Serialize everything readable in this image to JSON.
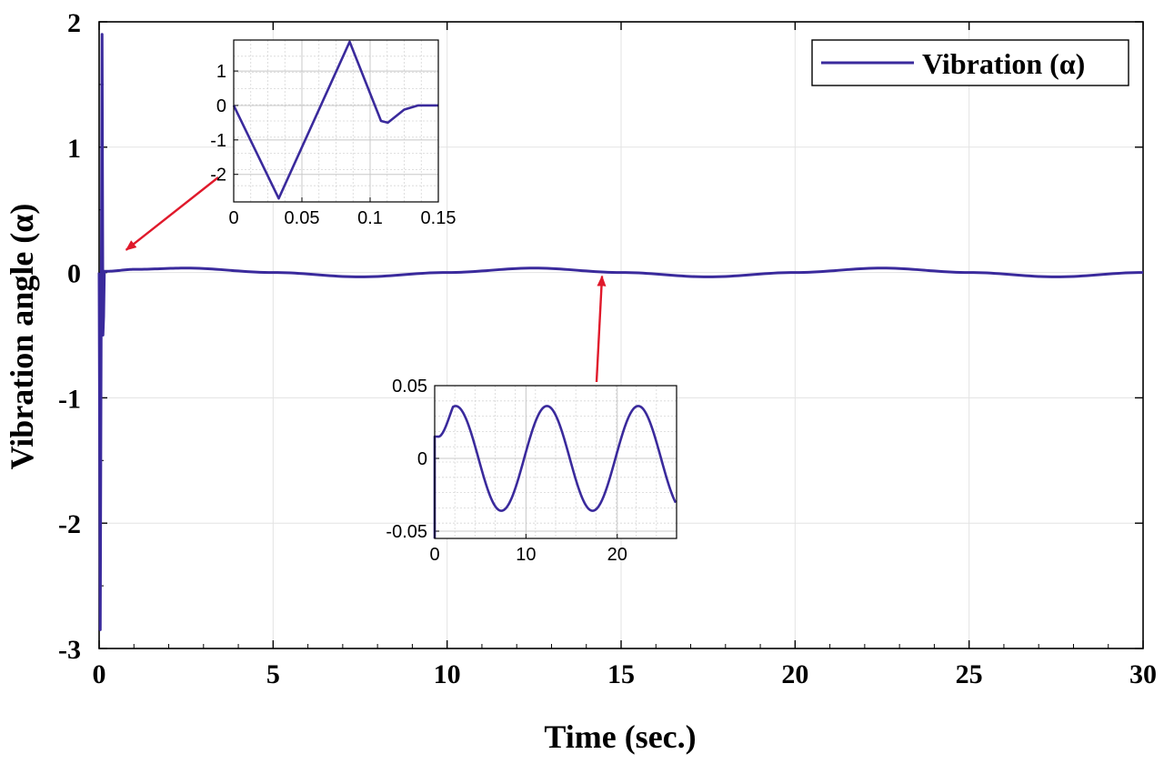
{
  "chart_data": {
    "type": "line",
    "xlabel": "Time (sec.)",
    "ylabel": "Vibration angle (α)",
    "xlim": [
      0,
      30
    ],
    "ylim": [
      -3,
      2
    ],
    "xticks": [
      0,
      5,
      10,
      15,
      20,
      25,
      30
    ],
    "yticks": [
      -3,
      -2,
      -1,
      0,
      1,
      2
    ],
    "grid": true,
    "legend": {
      "position": "top-right",
      "entries": [
        "Vibration (α)"
      ]
    },
    "series": [
      {
        "name": "Vibration (α)",
        "color": "#3a2a9c",
        "x": [
          0,
          0.033,
          0.085,
          0.11,
          0.13,
          0.15,
          0.25,
          1,
          2.5,
          5,
          7.5,
          10,
          12.5,
          15,
          17.5,
          20,
          22.5,
          25,
          27.5,
          30
        ],
        "y": [
          0,
          -2.85,
          1.9,
          -0.5,
          -0.35,
          0.01,
          0.01,
          0.025,
          0.035,
          0,
          -0.035,
          0,
          0.035,
          0,
          -0.035,
          0,
          0.035,
          0,
          -0.035,
          0
        ]
      }
    ],
    "insets": [
      {
        "location": "upper-left",
        "xlim": [
          0,
          0.15
        ],
        "ylim": [
          -2.8,
          1.9
        ],
        "xticks": [
          0,
          0.05,
          0.1,
          0.15
        ],
        "xtick_labels": [
          "0",
          "0.05",
          "0.1",
          "0.15"
        ],
        "yticks": [
          -2,
          -1,
          0,
          1
        ],
        "grid": true,
        "series": {
          "x": [
            0,
            0.033,
            0.085,
            0.108,
            0.113,
            0.125,
            0.135,
            0.15
          ],
          "y": [
            0,
            -2.7,
            1.85,
            -0.45,
            -0.5,
            -0.12,
            0,
            0
          ]
        }
      },
      {
        "location": "center",
        "xlim": [
          0,
          26.5
        ],
        "ylim": [
          -0.055,
          0.05
        ],
        "xticks": [
          0,
          10,
          20
        ],
        "xtick_labels": [
          "0",
          "10",
          "20"
        ],
        "yticks": [
          -0.05,
          0,
          0.05
        ],
        "ytick_labels": [
          "-0.05",
          "0",
          "0.05"
        ],
        "grid": true,
        "series": {
          "amplitude": 0.036,
          "period": 10,
          "peak_at": 2.3,
          "start": 0.015
        }
      }
    ],
    "annotations": [
      {
        "type": "arrow",
        "color": "#e0192b",
        "from": "inset-upper-left",
        "to": [
          0.2,
          0.02
        ]
      },
      {
        "type": "arrow",
        "color": "#e0192b",
        "from": "inset-center",
        "to": [
          14.4,
          0.0
        ]
      }
    ]
  }
}
